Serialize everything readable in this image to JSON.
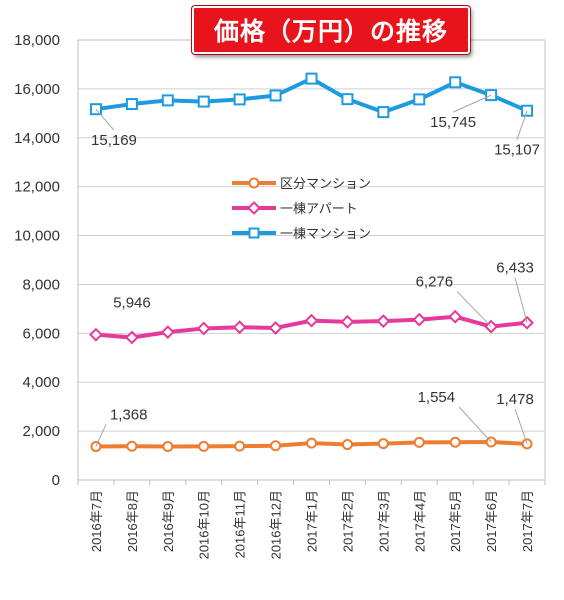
{
  "title": "価格（万円）の推移",
  "chart_data": {
    "type": "line",
    "title": "価格（万円）の推移",
    "categories": [
      "2016年7月",
      "2016年8月",
      "2016年9月",
      "2016年10月",
      "2016年11月",
      "2016年12月",
      "2017年1月",
      "2017年2月",
      "2017年3月",
      "2017年4月",
      "2017年5月",
      "2017年6月",
      "2017年7月"
    ],
    "ylim": [
      0,
      18000
    ],
    "yticks": [
      0,
      2000,
      4000,
      6000,
      8000,
      10000,
      12000,
      14000,
      16000,
      18000
    ],
    "ytick_labels": [
      "0",
      "2,000",
      "4,000",
      "6,000",
      "8,000",
      "10,000",
      "12,000",
      "14,000",
      "16,000",
      "18,000"
    ],
    "grid": true,
    "legend_position": "center",
    "series": [
      {
        "name": "区分マンション",
        "color": "#ed7d31",
        "marker": "circle",
        "values": [
          1368,
          1380,
          1370,
          1375,
          1385,
          1400,
          1510,
          1450,
          1490,
          1540,
          1545,
          1554,
          1478
        ],
        "data_labels": [
          {
            "index": 0,
            "text": "1,368"
          },
          {
            "index": 11,
            "text": "1,554"
          },
          {
            "index": 12,
            "text": "1,478"
          }
        ]
      },
      {
        "name": "一棟アパート",
        "color": "#e6399b",
        "marker": "diamond",
        "values": [
          5946,
          5830,
          6050,
          6200,
          6250,
          6220,
          6520,
          6470,
          6500,
          6560,
          6680,
          6276,
          6433
        ],
        "data_labels": [
          {
            "index": 0,
            "text": "5,946"
          },
          {
            "index": 11,
            "text": "6,276"
          },
          {
            "index": 12,
            "text": "6,433"
          }
        ]
      },
      {
        "name": "一棟マンション",
        "color": "#1e9be0",
        "marker": "square",
        "values": [
          15169,
          15380,
          15530,
          15480,
          15570,
          15730,
          16420,
          15580,
          15050,
          15570,
          16270,
          15745,
          15107
        ],
        "data_labels": [
          {
            "index": 0,
            "text": "15,169"
          },
          {
            "index": 11,
            "text": "15,745"
          },
          {
            "index": 12,
            "text": "15,107"
          }
        ]
      }
    ]
  }
}
